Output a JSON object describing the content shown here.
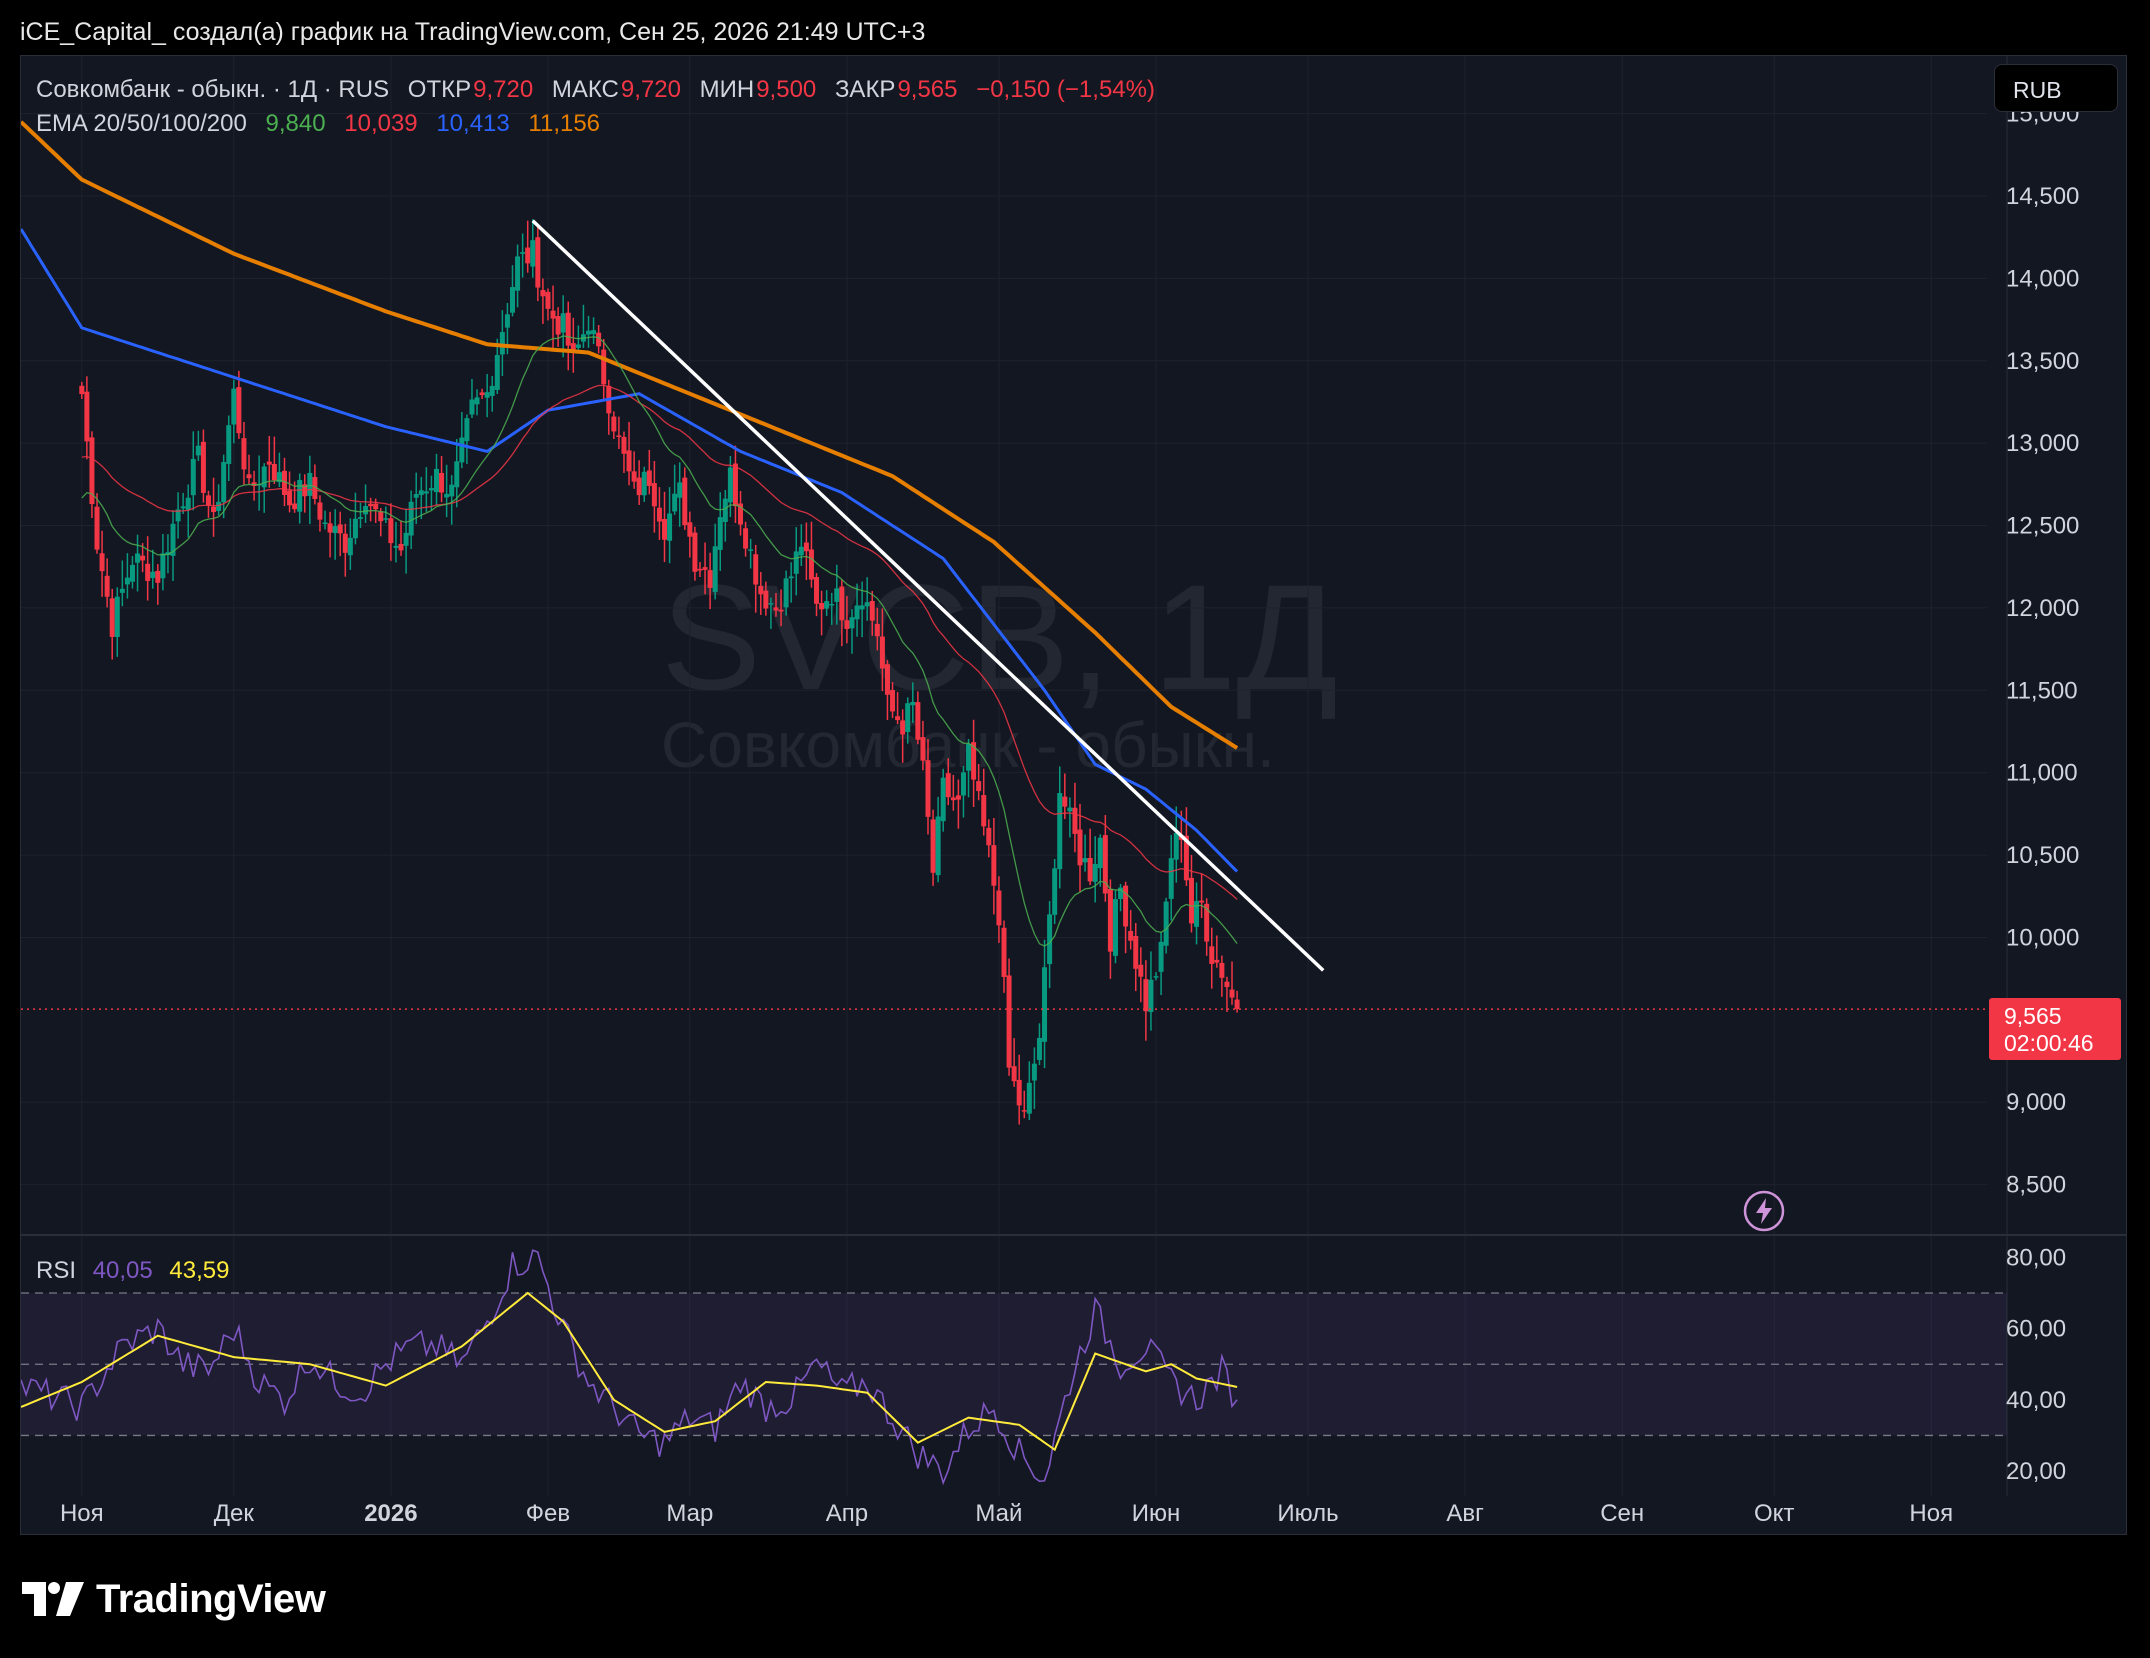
{
  "caption": "iCE_Capital_ создал(а) график на TradingView.com, Сен 25, 2026 21:49 UTC+3",
  "legend": {
    "symbol": "Совкомбанк - обыкн. · 1Д · RUS",
    "open_label": "ОТКР",
    "open": "9,720",
    "high_label": "МАКС",
    "high": "9,720",
    "low_label": "МИН",
    "low": "9,500",
    "close_label": "ЗАКР",
    "close": "9,565",
    "change": "−0,150 (−1,54%)",
    "ema_label": "EMA 20/50/100/200",
    "ema20": "9,840",
    "ema50": "10,039",
    "ema100": "10,413",
    "ema200": "11,156"
  },
  "rsi_legend": {
    "label": "RSI",
    "value": "40,05",
    "ma": "43,59"
  },
  "currency": "RUB",
  "price_badge": {
    "price": "9,565",
    "countdown": "02:00:46"
  },
  "watermark": {
    "ticker": "SVCB, 1Д",
    "name": "Совкомбанк - обыкн."
  },
  "brand": "TradingView",
  "colors": {
    "up": "#089981",
    "down": "#f23645",
    "ema20": "#4caf50",
    "ema50": "#f23645",
    "ema100": "#2962ff",
    "ema200": "#e67e00",
    "rsi": "#7e57c2",
    "rsi_ma": "#ffeb3b",
    "trendline": "#ffffff",
    "last_price": "#f23645"
  },
  "chart_data": [
    {
      "type": "candlestick",
      "symbol": "SVCB",
      "interval": "1D",
      "y_ticks": [
        "15,000",
        "14,500",
        "14,000",
        "13,500",
        "13,000",
        "12,500",
        "12,000",
        "11,500",
        "11,000",
        "10,500",
        "10,000",
        "9,000",
        "8,500"
      ],
      "ylim": [
        8200,
        15350
      ],
      "x_ticks": [
        "Ноя",
        "Дек",
        "2026",
        "Фев",
        "Мар",
        "Апр",
        "Май",
        "Июн",
        "Июль",
        "Авг",
        "Сен",
        "Окт",
        "Ноя"
      ],
      "x_ticks_days": [
        0,
        30,
        61,
        92,
        120,
        151,
        181,
        212,
        242,
        273,
        304,
        334,
        365
      ],
      "xlim": [
        -12,
        376
      ],
      "last_price": 9565,
      "anchors_day_close": [
        [
          0,
          13300
        ],
        [
          3,
          12400
        ],
        [
          6,
          11900
        ],
        [
          10,
          12300
        ],
        [
          15,
          12200
        ],
        [
          19,
          12600
        ],
        [
          23,
          12900
        ],
        [
          26,
          12500
        ],
        [
          30,
          13300
        ],
        [
          33,
          12700
        ],
        [
          37,
          12900
        ],
        [
          41,
          12650
        ],
        [
          45,
          12750
        ],
        [
          48,
          12500
        ],
        [
          52,
          12400
        ],
        [
          56,
          12700
        ],
        [
          59,
          12500
        ],
        [
          63,
          12350
        ],
        [
          66,
          12700
        ],
        [
          70,
          12800
        ],
        [
          73,
          12700
        ],
        [
          77,
          13200
        ],
        [
          80,
          13300
        ],
        [
          83,
          13700
        ],
        [
          86,
          14100
        ],
        [
          89,
          14150
        ],
        [
          92,
          13800
        ],
        [
          95,
          13700
        ],
        [
          97,
          13500
        ],
        [
          100,
          13750
        ],
        [
          103,
          13400
        ],
        [
          106,
          13000
        ],
        [
          109,
          12700
        ],
        [
          112,
          12800
        ],
        [
          115,
          12500
        ],
        [
          118,
          12700
        ],
        [
          121,
          12300
        ],
        [
          124,
          12200
        ],
        [
          126,
          12600
        ],
        [
          128,
          12800
        ],
        [
          131,
          12450
        ],
        [
          134,
          12100
        ],
        [
          137,
          12000
        ],
        [
          140,
          12200
        ],
        [
          142,
          12400
        ],
        [
          145,
          12000
        ],
        [
          148,
          12100
        ],
        [
          151,
          11950
        ],
        [
          154,
          12100
        ],
        [
          157,
          11850
        ],
        [
          159,
          11400
        ],
        [
          162,
          11300
        ],
        [
          164,
          11400
        ],
        [
          166,
          11000
        ],
        [
          168,
          10400
        ],
        [
          170,
          10900
        ],
        [
          173,
          10800
        ],
        [
          175,
          11100
        ],
        [
          177,
          10800
        ],
        [
          179,
          10500
        ],
        [
          181,
          10150
        ],
        [
          183,
          9200
        ],
        [
          186,
          8900
        ],
        [
          189,
          9400
        ],
        [
          191,
          10100
        ],
        [
          193,
          10900
        ],
        [
          195,
          10700
        ],
        [
          197,
          10500
        ],
        [
          199,
          10400
        ],
        [
          201,
          10600
        ],
        [
          203,
          10000
        ],
        [
          205,
          10300
        ],
        [
          207,
          10000
        ],
        [
          210,
          9600
        ],
        [
          213,
          9900
        ],
        [
          215,
          10500
        ],
        [
          217,
          10650
        ],
        [
          219,
          10100
        ],
        [
          221,
          10200
        ],
        [
          223,
          9900
        ],
        [
          225,
          9800
        ],
        [
          228,
          9550
        ]
      ],
      "ema100_day_value": [
        [
          -12,
          14300
        ],
        [
          0,
          13700
        ],
        [
          30,
          13400
        ],
        [
          60,
          13100
        ],
        [
          80,
          12950
        ],
        [
          92,
          13200
        ],
        [
          110,
          13300
        ],
        [
          130,
          12950
        ],
        [
          150,
          12700
        ],
        [
          170,
          12300
        ],
        [
          190,
          11500
        ],
        [
          200,
          11050
        ],
        [
          210,
          10900
        ],
        [
          220,
          10650
        ],
        [
          228,
          10400
        ]
      ],
      "ema200_day_value": [
        [
          -12,
          14950
        ],
        [
          0,
          14600
        ],
        [
          30,
          14150
        ],
        [
          60,
          13800
        ],
        [
          80,
          13600
        ],
        [
          100,
          13550
        ],
        [
          120,
          13300
        ],
        [
          140,
          13050
        ],
        [
          160,
          12800
        ],
        [
          180,
          12400
        ],
        [
          200,
          11850
        ],
        [
          215,
          11400
        ],
        [
          228,
          11150
        ]
      ],
      "trendline_day_value": [
        [
          89,
          14350
        ],
        [
          245,
          9800
        ]
      ]
    },
    {
      "type": "line",
      "name": "RSI",
      "value": 40.05,
      "ma": 43.59,
      "y_ticks": [
        "80,00",
        "60,00",
        "40,00",
        "20,00"
      ],
      "ylim": [
        13,
        86
      ],
      "bands": [
        30,
        50,
        70
      ],
      "anchors_day_rsi": [
        [
          -12,
          44
        ],
        [
          0,
          38
        ],
        [
          8,
          55
        ],
        [
          15,
          60
        ],
        [
          20,
          50
        ],
        [
          25,
          48
        ],
        [
          30,
          60
        ],
        [
          35,
          45
        ],
        [
          40,
          40
        ],
        [
          45,
          52
        ],
        [
          50,
          45
        ],
        [
          55,
          42
        ],
        [
          60,
          50
        ],
        [
          65,
          55
        ],
        [
          70,
          55
        ],
        [
          75,
          50
        ],
        [
          80,
          62
        ],
        [
          85,
          78
        ],
        [
          90,
          80
        ],
        [
          95,
          60
        ],
        [
          100,
          45
        ],
        [
          105,
          38
        ],
        [
          110,
          30
        ],
        [
          115,
          28
        ],
        [
          120,
          35
        ],
        [
          125,
          32
        ],
        [
          130,
          45
        ],
        [
          135,
          38
        ],
        [
          140,
          40
        ],
        [
          145,
          50
        ],
        [
          150,
          42
        ],
        [
          155,
          45
        ],
        [
          160,
          35
        ],
        [
          165,
          25
        ],
        [
          170,
          20
        ],
        [
          175,
          32
        ],
        [
          180,
          38
        ],
        [
          185,
          25
        ],
        [
          190,
          18
        ],
        [
          195,
          45
        ],
        [
          200,
          65
        ],
        [
          205,
          50
        ],
        [
          210,
          55
        ],
        [
          215,
          45
        ],
        [
          220,
          40
        ],
        [
          225,
          48
        ],
        [
          228,
          40
        ]
      ],
      "anchors_day_ma": [
        [
          -12,
          38
        ],
        [
          0,
          45
        ],
        [
          15,
          58
        ],
        [
          30,
          52
        ],
        [
          45,
          50
        ],
        [
          60,
          44
        ],
        [
          75,
          55
        ],
        [
          88,
          70
        ],
        [
          95,
          62
        ],
        [
          105,
          40
        ],
        [
          115,
          31
        ],
        [
          125,
          34
        ],
        [
          135,
          45
        ],
        [
          145,
          44
        ],
        [
          155,
          42
        ],
        [
          165,
          28
        ],
        [
          175,
          35
        ],
        [
          185,
          33
        ],
        [
          192,
          26
        ],
        [
          200,
          53
        ],
        [
          210,
          48
        ],
        [
          215,
          50
        ],
        [
          220,
          46
        ],
        [
          228,
          43.6
        ]
      ]
    }
  ]
}
